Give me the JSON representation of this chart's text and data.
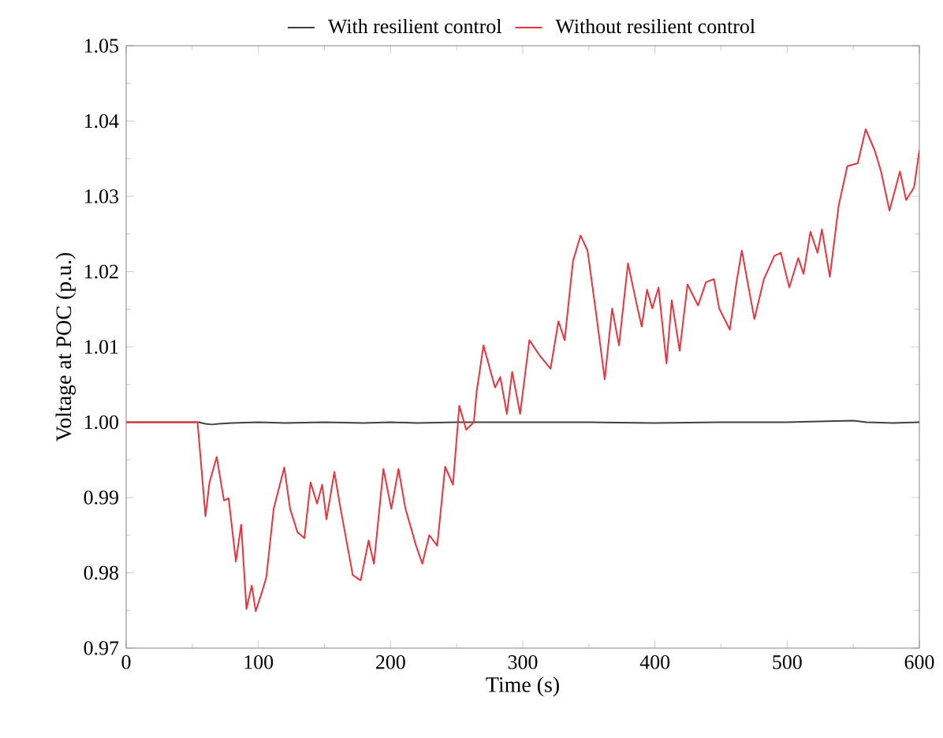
{
  "chart_data": {
    "type": "line",
    "xlabel": "Time (s)",
    "ylabel": "Voltage at POC (p.u.)",
    "xlim": [
      0,
      600
    ],
    "xticks": [
      0,
      100,
      200,
      300,
      400,
      500,
      600
    ],
    "ylim": [
      0.97,
      1.05
    ],
    "yticks": [
      0.97,
      0.98,
      0.99,
      {
        "value": 1.0,
        "label": "1.00"
      },
      1.01,
      1.02,
      1.03,
      1.04,
      1.05
    ],
    "legend": "top",
    "series": [
      {
        "name": "With resilient control",
        "color": "#404040",
        "x": [
          0,
          55,
          60,
          65,
          70,
          80,
          100,
          120,
          150,
          180,
          200,
          220,
          250,
          280,
          300,
          350,
          400,
          450,
          500,
          550,
          560,
          580,
          600
        ],
        "values": [
          1.0,
          1.0,
          0.9998,
          0.9997,
          0.9998,
          0.9999,
          1.0,
          0.9999,
          1.0,
          0.9999,
          1.0,
          0.9999,
          1.0,
          1.0,
          1.0,
          1.0,
          0.9999,
          1.0,
          1.0,
          1.0002,
          1.0,
          0.9999,
          1.0
        ]
      },
      {
        "name": "Without resilient control",
        "color": "#e8343f",
        "x": [
          0,
          54,
          60,
          63,
          68.5,
          74,
          77.5,
          83,
          87,
          91,
          95,
          98,
          103,
          106,
          111.6,
          119.6,
          124,
          129.6,
          134.8,
          139.5,
          144.4,
          148.3,
          151.5,
          157.5,
          161.5,
          171.4,
          177.4,
          183.4,
          187.4,
          194.6,
          200.6,
          206,
          211.3,
          219.3,
          224,
          229.3,
          235.3,
          241.3,
          247.2,
          252,
          257.2,
          263,
          265,
          270.3,
          279,
          283,
          288,
          292,
          298,
          305,
          313,
          321,
          327,
          331.7,
          338,
          343.7,
          349,
          355,
          362,
          367.6,
          372.8,
          379.6,
          386,
          390,
          394,
          398,
          402.7,
          408.7,
          412.7,
          418.7,
          424.6,
          432.6,
          438.6,
          444.6,
          448.6,
          456.6,
          461.7,
          465.7,
          475.2,
          482.4,
          490.4,
          495.2,
          501.6,
          508.4,
          512.4,
          517.6,
          523,
          526.3,
          532.3,
          539,
          545.5,
          553.4,
          559.4,
          566.2,
          571,
          577.4,
          585.3,
          590,
          596,
          600
        ],
        "values": [
          1.0,
          1.0,
          0.9875,
          0.992,
          0.9954,
          0.9896,
          0.9899,
          0.9815,
          0.9864,
          0.9752,
          0.9783,
          0.9749,
          0.9776,
          0.9794,
          0.9885,
          0.994,
          0.9885,
          0.9854,
          0.9846,
          0.992,
          0.9892,
          0.9917,
          0.9871,
          0.9934,
          0.9892,
          0.9797,
          0.979,
          0.9843,
          0.9812,
          0.9938,
          0.9885,
          0.9938,
          0.9885,
          0.9836,
          0.9812,
          0.985,
          0.9836,
          0.9941,
          0.9917,
          1.0022,
          0.999,
          1.0,
          1.0039,
          1.0102,
          1.0046,
          1.006,
          1.0011,
          1.0067,
          1.0011,
          1.0109,
          1.0088,
          1.0071,
          1.0134,
          1.0109,
          1.0214,
          1.0248,
          1.0228,
          1.0151,
          1.0057,
          1.0151,
          1.0102,
          1.0211,
          1.0158,
          1.0127,
          1.0176,
          1.0151,
          1.0179,
          1.0078,
          1.0162,
          1.0095,
          1.0183,
          1.0155,
          1.0186,
          1.019,
          1.0151,
          1.0123,
          1.0186,
          1.0228,
          1.0137,
          1.019,
          1.0221,
          1.0225,
          1.0179,
          1.0218,
          1.0197,
          1.0253,
          1.0225,
          1.0256,
          1.0193,
          1.0288,
          1.034,
          1.0344,
          1.0389,
          1.0361,
          1.0333,
          1.0281,
          1.0333,
          1.0295,
          1.0312,
          1.0361
        ]
      }
    ]
  }
}
